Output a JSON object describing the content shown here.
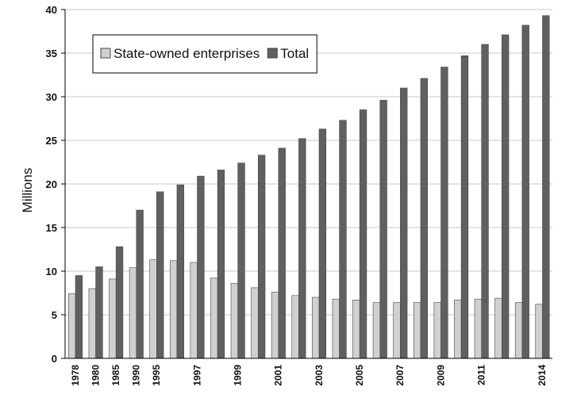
{
  "chart_data": {
    "type": "bar",
    "y_label": "Millions",
    "categories": [
      "1978",
      "1980",
      "1985",
      "1990",
      "1995",
      null,
      "1997",
      null,
      "1999",
      null,
      "2001",
      null,
      "2003",
      null,
      "2005",
      null,
      "2007",
      null,
      "2009",
      null,
      "2011",
      null,
      null,
      "2014"
    ],
    "series": [
      {
        "name": "State-owned enterprises",
        "color": "#d0d0d0",
        "values": [
          7.4,
          8.0,
          9.1,
          10.4,
          11.3,
          11.2,
          11.0,
          9.2,
          8.6,
          8.1,
          7.6,
          7.2,
          7.0,
          6.8,
          6.7,
          6.4,
          6.4,
          6.4,
          6.4,
          6.7,
          6.8,
          6.9,
          6.4,
          6.2
        ]
      },
      {
        "name": "Total",
        "color": "#606060",
        "values": [
          9.5,
          10.5,
          12.8,
          17.0,
          19.1,
          19.9,
          20.9,
          21.6,
          22.4,
          23.3,
          24.1,
          25.2,
          26.3,
          27.3,
          28.5,
          29.6,
          31.0,
          32.1,
          33.4,
          34.7,
          36.0,
          37.1,
          38.2,
          39.3
        ]
      }
    ],
    "ylim": [
      0,
      40
    ],
    "yticks": [
      0,
      5,
      10,
      15,
      20,
      25,
      30,
      35,
      40
    ],
    "grid": true,
    "legend": "upper left"
  }
}
